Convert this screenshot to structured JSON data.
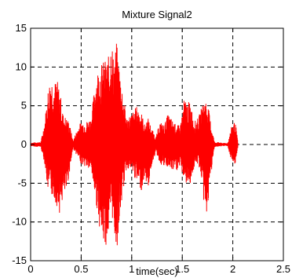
{
  "chart_data": {
    "type": "line",
    "title": "Mixture Signal2",
    "xlabel": "time(sec)",
    "ylabel": "",
    "xlim": [
      0,
      2.5
    ],
    "ylim": [
      -15,
      15
    ],
    "xticks": [
      0,
      0.5,
      1,
      1.5,
      2,
      2.5
    ],
    "xtick_labels": [
      "0",
      "0.5",
      "1",
      "1.5",
      "2",
      "2.5"
    ],
    "yticks": [
      -15,
      -10,
      -5,
      0,
      5,
      10,
      15
    ],
    "ytick_labels": [
      "-15",
      "-10",
      "-5",
      "0",
      "5",
      "10",
      "15"
    ],
    "grid": true,
    "grid_style": "dashed",
    "legend": "none",
    "series": [
      {
        "color": "#ff0000",
        "style": "dense oscillating waveform",
        "x": [
          0.0,
          0.05,
          0.1,
          0.14,
          0.17,
          0.2,
          0.23,
          0.26,
          0.29,
          0.32,
          0.35,
          0.38,
          0.42,
          0.46,
          0.5,
          0.55,
          0.6,
          0.64,
          0.67,
          0.7,
          0.74,
          0.78,
          0.8,
          0.82,
          0.85,
          0.88,
          0.91,
          0.95,
          1.0,
          1.05,
          1.1,
          1.13,
          1.16,
          1.2,
          1.24,
          1.28,
          1.32,
          1.36,
          1.4,
          1.44,
          1.48,
          1.52,
          1.55,
          1.58,
          1.62,
          1.66,
          1.69,
          1.72,
          1.75,
          1.78,
          1.82,
          1.86,
          1.9,
          1.95,
          1.99,
          2.01,
          2.03,
          2.05
        ],
        "upper": [
          0.2,
          0.3,
          0.3,
          3.0,
          7.0,
          9.2,
          8.0,
          8.5,
          7.0,
          4.0,
          3.5,
          3.0,
          0.5,
          2.0,
          3.0,
          3.0,
          3.5,
          8.5,
          10.0,
          10.5,
          11.0,
          11.5,
          14.7,
          11.0,
          13.2,
          10.0,
          7.0,
          3.5,
          4.0,
          5.0,
          4.0,
          2.5,
          3.5,
          2.0,
          1.0,
          3.0,
          2.5,
          4.0,
          3.2,
          2.5,
          2.5,
          6.0,
          5.5,
          5.5,
          3.0,
          3.5,
          4.8,
          6.0,
          5.5,
          3.0,
          0.3,
          0.3,
          0.2,
          0.2,
          2.5,
          3.0,
          2.5,
          0.3
        ],
        "lower": [
          -0.2,
          -0.3,
          -0.3,
          -2.5,
          -6.0,
          -6.5,
          -7.0,
          -8.0,
          -9.0,
          -7.0,
          -6.5,
          -4.0,
          -0.5,
          -1.5,
          -2.5,
          -3.0,
          -3.5,
          -7.0,
          -9.5,
          -12.5,
          -13.2,
          -12.0,
          -8.5,
          -11.0,
          -14.0,
          -10.0,
          -6.5,
          -3.0,
          -3.5,
          -5.0,
          -6.0,
          -4.0,
          -6.0,
          -2.5,
          -1.0,
          -2.5,
          -3.0,
          -3.0,
          -3.5,
          -3.5,
          -3.0,
          -4.5,
          -5.5,
          -5.0,
          -3.0,
          -2.5,
          -4.5,
          -8.5,
          -9.0,
          -4.5,
          -0.3,
          -0.3,
          -0.2,
          -0.2,
          -2.5,
          -3.2,
          -2.5,
          -0.3
        ]
      }
    ]
  }
}
